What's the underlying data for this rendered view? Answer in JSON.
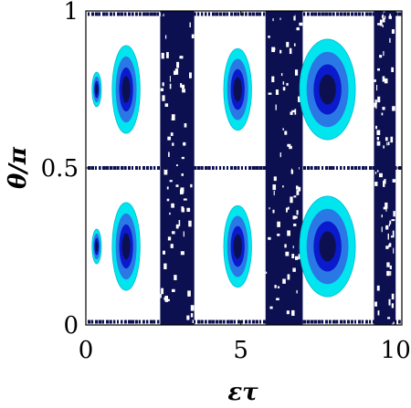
{
  "chart_data": {
    "type": "heatmap",
    "title": "",
    "xlabel": "ετ",
    "ylabel": "θ/π",
    "xlim": [
      0,
      10.2
    ],
    "ylim": [
      0,
      1
    ],
    "x_ticks": [
      {
        "value": 0,
        "label": "0"
      },
      {
        "value": 5,
        "label": "5"
      },
      {
        "value": 10,
        "label": "10"
      }
    ],
    "y_ticks": [
      {
        "value": 0,
        "label": "0"
      },
      {
        "value": 0.5,
        "label": "0.5"
      },
      {
        "value": 1,
        "label": "1"
      }
    ],
    "grid": false,
    "legend": "none",
    "colors": {
      "level_1": "#00e5ee",
      "level_2": "#2a78e6",
      "level_3": "#0a1acc",
      "level_4": "#0d1050",
      "outline": "#00bcd4"
    },
    "regions": [
      {
        "kind": "lobe",
        "x": 1.3,
        "y": 0.75,
        "width": 0.9,
        "height": 0.28
      },
      {
        "kind": "lobe",
        "x": 1.3,
        "y": 0.25,
        "width": 0.9,
        "height": 0.28
      },
      {
        "kind": "lobe",
        "x": 0.35,
        "y": 0.75,
        "width": 0.3,
        "height": 0.11
      },
      {
        "kind": "lobe",
        "x": 0.35,
        "y": 0.25,
        "width": 0.3,
        "height": 0.11
      },
      {
        "kind": "band",
        "x0": 2.4,
        "x1": 3.5
      },
      {
        "kind": "band",
        "x0": 5.8,
        "x1": 7.0
      },
      {
        "kind": "band",
        "x0": 9.3,
        "x1": 10.0
      },
      {
        "kind": "lobe",
        "x": 4.9,
        "y": 0.75,
        "width": 0.9,
        "height": 0.26
      },
      {
        "kind": "lobe",
        "x": 4.9,
        "y": 0.25,
        "width": 0.9,
        "height": 0.26
      },
      {
        "kind": "lobe",
        "x": 7.8,
        "y": 0.75,
        "width": 1.8,
        "height": 0.32
      },
      {
        "kind": "lobe",
        "x": 7.8,
        "y": 0.25,
        "width": 1.8,
        "height": 0.32
      },
      {
        "kind": "line",
        "y": 0.5
      },
      {
        "kind": "line",
        "y": 0.99
      },
      {
        "kind": "line",
        "y": 0.01
      }
    ]
  }
}
